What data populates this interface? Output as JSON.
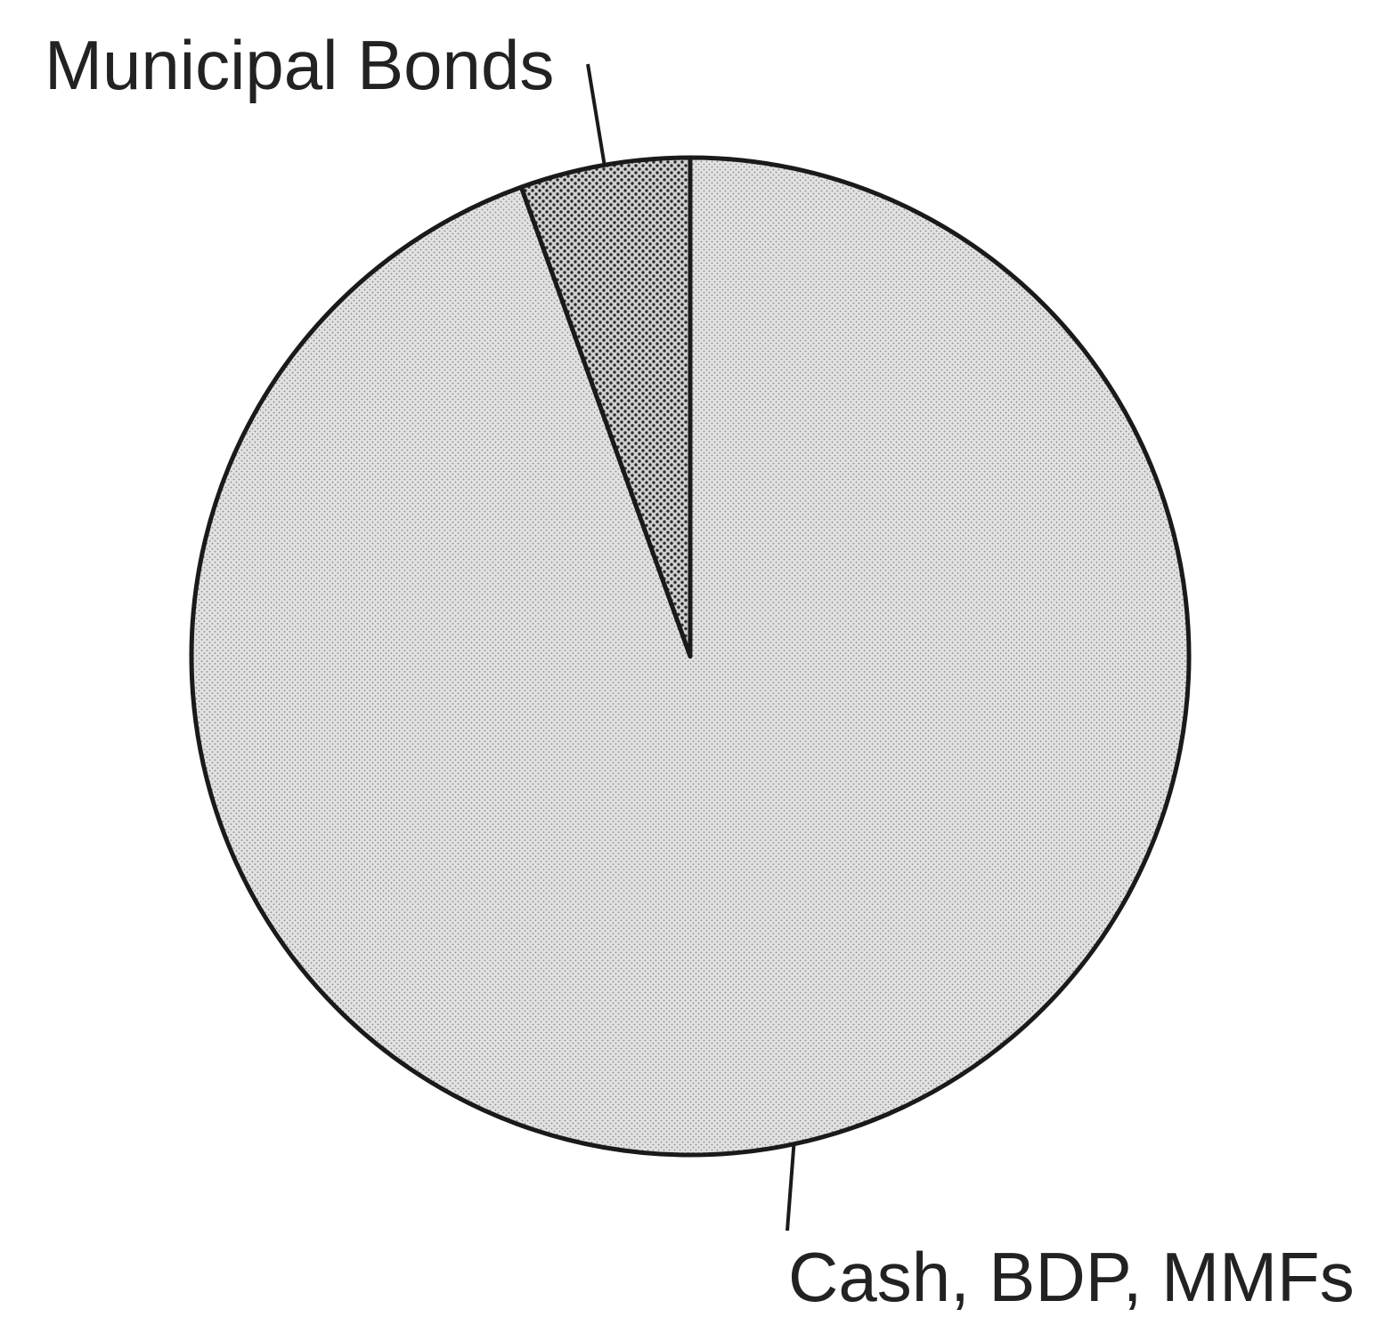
{
  "chart_data": {
    "type": "pie",
    "title": "",
    "slices": [
      {
        "label": "Municipal Bonds",
        "value": 5.5,
        "fill": "dense-dot"
      },
      {
        "label": "Cash, BDP, MMFs",
        "value": 94.5,
        "fill": "light-dot"
      }
    ],
    "legend": "none",
    "start_angle": "12 o'clock",
    "direction": "counterclockwise for Municipal Bonds",
    "colors": {
      "outline": "#1a1a1a",
      "light_fill_base": "#e2e2e2",
      "light_fill_dot": "#8a8a8a",
      "dense_fill_base": "#d0d0d0",
      "dense_fill_dot": "#2a2a2a",
      "label_text": "#222222"
    }
  }
}
